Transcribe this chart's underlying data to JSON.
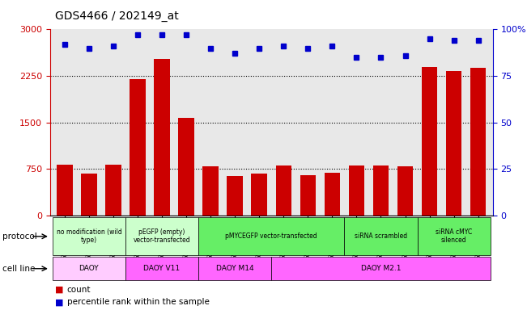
{
  "title": "GDS4466 / 202149_at",
  "samples": [
    "GSM550686",
    "GSM550687",
    "GSM550688",
    "GSM550692",
    "GSM550693",
    "GSM550694",
    "GSM550695",
    "GSM550696",
    "GSM550697",
    "GSM550689",
    "GSM550690",
    "GSM550691",
    "GSM550698",
    "GSM550699",
    "GSM550700",
    "GSM550701",
    "GSM550702",
    "GSM550703"
  ],
  "counts": [
    820,
    680,
    820,
    2200,
    2530,
    1580,
    790,
    640,
    680,
    800,
    650,
    690,
    800,
    810,
    790,
    2400,
    2330,
    2380
  ],
  "percentile": [
    92,
    90,
    91,
    97,
    97,
    97,
    90,
    87,
    90,
    91,
    90,
    91,
    85,
    85,
    86,
    95,
    94,
    94
  ],
  "ylim_left": [
    0,
    3000
  ],
  "ylim_right": [
    0,
    100
  ],
  "yticks_left": [
    0,
    750,
    1500,
    2250,
    3000
  ],
  "yticks_right": [
    0,
    25,
    50,
    75,
    100
  ],
  "bar_color": "#cc0000",
  "dot_color": "#0000cc",
  "bg_color": "#e8e8e8",
  "protocol_groups": [
    {
      "label": "no modification (wild\ntype)",
      "start": 0,
      "end": 3,
      "color": "#ccffcc"
    },
    {
      "label": "pEGFP (empty)\nvector-transfected",
      "start": 3,
      "end": 6,
      "color": "#ccffcc"
    },
    {
      "label": "pMYCEGFP vector-transfected",
      "start": 6,
      "end": 12,
      "color": "#66ee66"
    },
    {
      "label": "siRNA scrambled",
      "start": 12,
      "end": 15,
      "color": "#66ee66"
    },
    {
      "label": "siRNA cMYC\nsilenced",
      "start": 15,
      "end": 18,
      "color": "#66ee66"
    }
  ],
  "cellline_groups": [
    {
      "label": "DAOY",
      "start": 0,
      "end": 3,
      "color": "#ffccff"
    },
    {
      "label": "DAOY V11",
      "start": 3,
      "end": 6,
      "color": "#ff66ff"
    },
    {
      "label": "DAOY M14",
      "start": 6,
      "end": 9,
      "color": "#ff66ff"
    },
    {
      "label": "DAOY M2.1",
      "start": 9,
      "end": 18,
      "color": "#ff66ff"
    }
  ],
  "fig_width": 6.51,
  "fig_height": 3.84,
  "dpi": 100
}
